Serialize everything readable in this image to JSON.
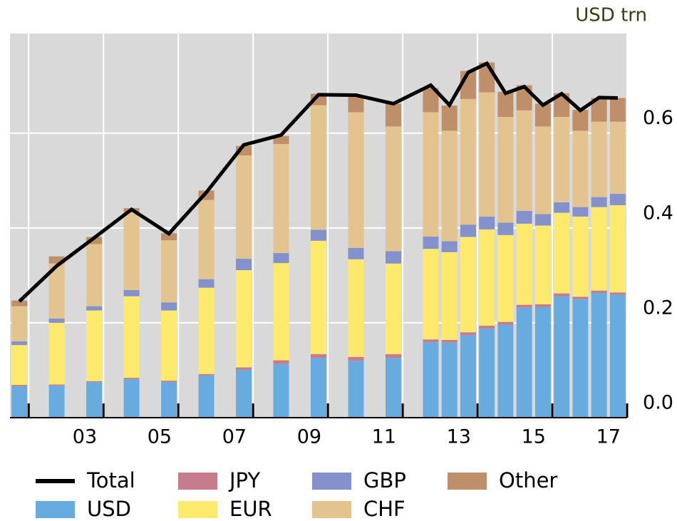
{
  "chart_data": {
    "type": "stacked_bar_line",
    "y_axis_label": "USD trn",
    "x": [
      2001.75,
      2002.75,
      2003.75,
      2004.75,
      2005.75,
      2006.75,
      2007.75,
      2008.75,
      2009.75,
      2010.75,
      2011.75,
      2012.75,
      2013.25,
      2013.75,
      2014.25,
      2014.75,
      2015.25,
      2015.75,
      2016.25,
      2016.75,
      2017.25,
      2017.75
    ],
    "xlim": [
      2001.5,
      2018
    ],
    "xticks": [
      {
        "value": 2003.5,
        "label": "03"
      },
      {
        "value": 2005.5,
        "label": "05"
      },
      {
        "value": 2007.5,
        "label": "07"
      },
      {
        "value": 2009.5,
        "label": "09"
      },
      {
        "value": 2011.5,
        "label": "11"
      },
      {
        "value": 2013.5,
        "label": "13"
      },
      {
        "value": 2015.5,
        "label": "15"
      },
      {
        "value": 2017.5,
        "label": "17"
      }
    ],
    "ylim": [
      0,
      0.81
    ],
    "yticks": [
      {
        "value": 0,
        "label": "0.0"
      },
      {
        "value": 0.2,
        "label": "0.2"
      },
      {
        "value": 0.4,
        "label": "0.4"
      },
      {
        "value": 0.6,
        "label": "0.6"
      }
    ],
    "grid": true,
    "series": [
      {
        "name": "USD",
        "color": "#68acdf",
        "values": [
          0.066,
          0.068,
          0.075,
          0.081,
          0.075,
          0.089,
          0.101,
          0.113,
          0.126,
          0.12,
          0.126,
          0.159,
          0.158,
          0.174,
          0.188,
          0.196,
          0.232,
          0.233,
          0.256,
          0.25,
          0.263,
          0.259
        ]
      },
      {
        "name": "JPY",
        "color": "#c67c8c",
        "values": [
          0.003,
          0.002,
          0.002,
          0.003,
          0.003,
          0.003,
          0.005,
          0.008,
          0.008,
          0.008,
          0.008,
          0.006,
          0.006,
          0.006,
          0.006,
          0.006,
          0.006,
          0.006,
          0.006,
          0.005,
          0.005,
          0.005
        ]
      },
      {
        "name": "EUR",
        "color": "#fde96c",
        "values": [
          0.084,
          0.13,
          0.149,
          0.172,
          0.148,
          0.182,
          0.205,
          0.205,
          0.239,
          0.206,
          0.191,
          0.191,
          0.185,
          0.201,
          0.203,
          0.183,
          0.171,
          0.166,
          0.17,
          0.169,
          0.176,
          0.184
        ]
      },
      {
        "name": "GBP",
        "color": "#8391cc",
        "values": [
          0.008,
          0.009,
          0.009,
          0.013,
          0.017,
          0.018,
          0.024,
          0.021,
          0.023,
          0.024,
          0.026,
          0.026,
          0.023,
          0.026,
          0.027,
          0.026,
          0.027,
          0.024,
          0.022,
          0.02,
          0.021,
          0.024
        ]
      },
      {
        "name": "CHF",
        "color": "#e3c48f",
        "values": [
          0.074,
          0.116,
          0.131,
          0.164,
          0.131,
          0.167,
          0.218,
          0.23,
          0.263,
          0.286,
          0.263,
          0.262,
          0.233,
          0.265,
          0.262,
          0.223,
          0.212,
          0.185,
          0.18,
          0.161,
          0.159,
          0.152
        ]
      },
      {
        "name": "Other",
        "color": "#bf8f69",
        "values": [
          0.012,
          0.015,
          0.015,
          0.009,
          0.015,
          0.02,
          0.02,
          0.017,
          0.024,
          0.035,
          0.048,
          0.051,
          0.053,
          0.059,
          0.063,
          0.053,
          0.053,
          0.048,
          0.05,
          0.044,
          0.05,
          0.05
        ]
      },
      {
        "name": "Total",
        "color": "#000000",
        "type": "line",
        "values": [
          0.245,
          0.32,
          0.379,
          0.439,
          0.388,
          0.475,
          0.575,
          0.596,
          0.681,
          0.68,
          0.662,
          0.701,
          0.659,
          0.728,
          0.747,
          0.684,
          0.698,
          0.659,
          0.683,
          0.648,
          0.675,
          0.674
        ]
      }
    ]
  }
}
